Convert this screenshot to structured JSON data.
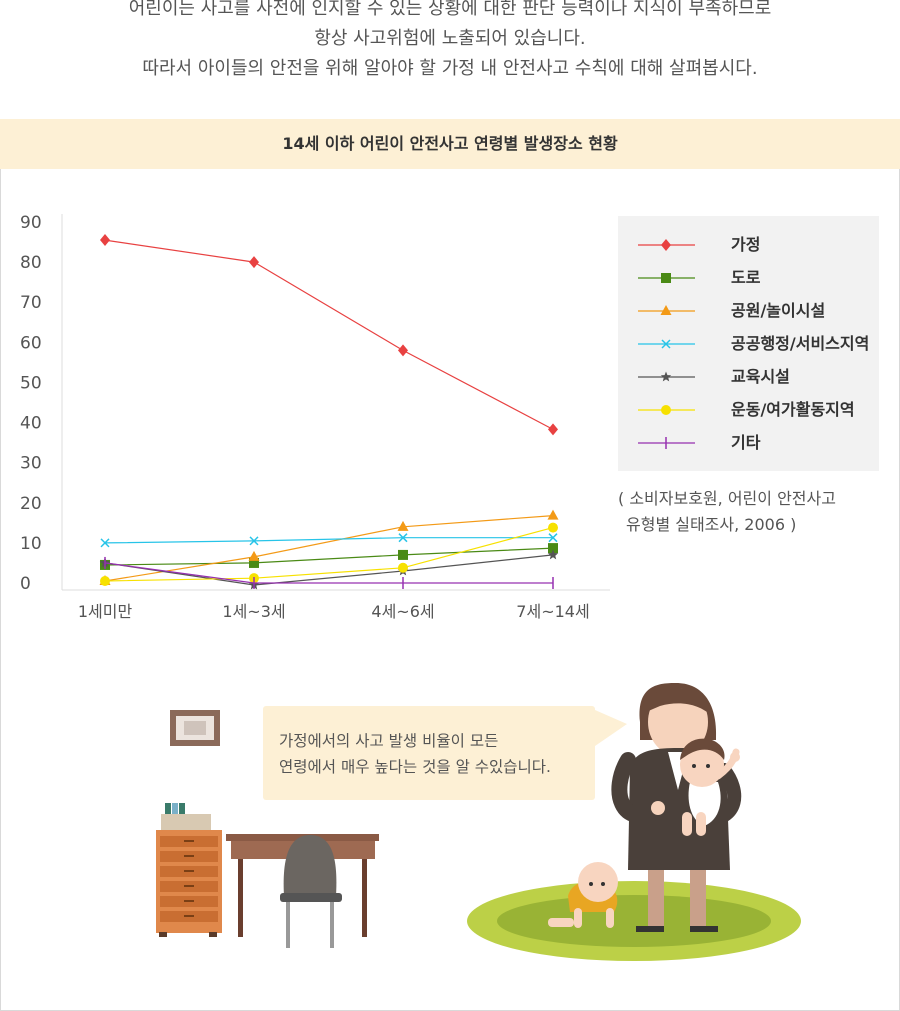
{
  "intro": {
    "line1": "어린이는 사고를 사전에 인지할 수 있는 상황에 대한 판단 능력이나 지식이 부족하므로",
    "line2": "항상 사고위험에 노출되어 있습니다.",
    "line3": "따라서 아이들의 안전을 위해 알아야 할 가정 내 안전사고 수칙에 대해 살펴봅시다."
  },
  "chart_data": {
    "type": "line",
    "title": "14세 이하 어린이 안전사고 연령별 발생장소 현황",
    "categories": [
      "1세미만",
      "1세~3세",
      "4세~6세",
      "7세~14세"
    ],
    "ylim": [
      0,
      90
    ],
    "yticks": [
      "90",
      "80",
      "70",
      "60",
      "50",
      "40",
      "30",
      "20",
      "10",
      "0"
    ],
    "xlabel": "",
    "ylabel": "",
    "legend_position": "right",
    "grid": false,
    "series": [
      {
        "name": "가정",
        "values": [
          85.5,
          80,
          58,
          38.3
        ],
        "color": "#e84141",
        "marker": "diamond"
      },
      {
        "name": "도로",
        "values": [
          4.5,
          5,
          7,
          8.7
        ],
        "color": "#4a8a15",
        "marker": "square"
      },
      {
        "name": "공원/놀이시설",
        "values": [
          0.5,
          6.5,
          14,
          16.8
        ],
        "color": "#f39a17",
        "marker": "triangle"
      },
      {
        "name": "공공행정/서비스지역",
        "values": [
          10,
          10.5,
          11.3,
          11.3
        ],
        "color": "#27c4e8",
        "marker": "x"
      },
      {
        "name": "교육시설",
        "values": [
          5,
          -0.5,
          3,
          7
        ],
        "color": "#555555",
        "marker": "star"
      },
      {
        "name": "운동/여가활동지역",
        "values": [
          0.5,
          1.2,
          3.8,
          13.8
        ],
        "color": "#f7e100",
        "marker": "circle"
      },
      {
        "name": "기타",
        "values": [
          5,
          0,
          0,
          0
        ],
        "color": "#9630b0",
        "marker": "bar"
      }
    ]
  },
  "source": {
    "line1": "( 소비자보호원, 어린이 안전사고",
    "line2": "유형별 실태조사, 2006 )"
  },
  "bubble": {
    "line1": "가정에서의 사고 발생 비율이 모든",
    "line2": "연령에서 매우 높다는 것을 알 수있습니다."
  }
}
